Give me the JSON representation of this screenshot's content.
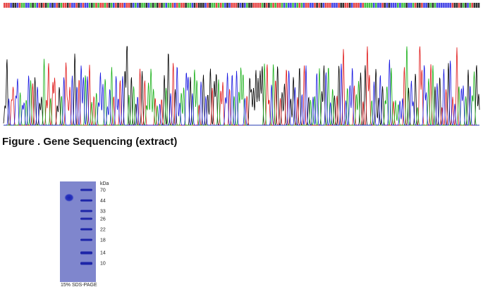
{
  "figure_caption": "Figure . Gene Sequencing (extract)",
  "gel": {
    "unit": "kDa",
    "markers": [
      70,
      44,
      33,
      26,
      22,
      18,
      14,
      10
    ],
    "caption": "15% SDS-PAGE"
  }
}
